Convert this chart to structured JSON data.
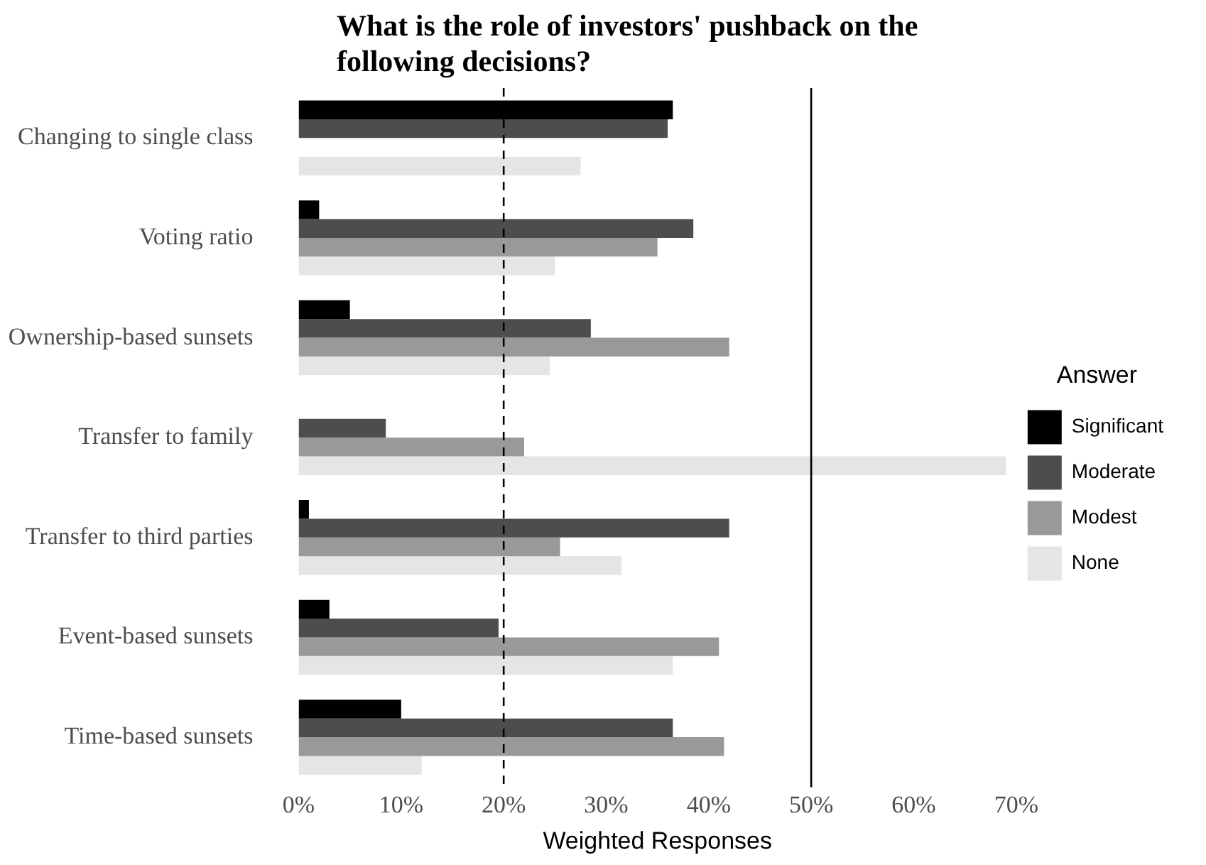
{
  "chart_data": {
    "type": "bar",
    "orientation": "horizontal",
    "title": "What is the role of investors' pushback on the following decisions?",
    "xlabel": "Weighted Responses",
    "legend_title": "Answer",
    "legend": "right",
    "grid": false,
    "categories": [
      "Changing to single class",
      "Voting ratio",
      "Ownership-based sunsets",
      "Transfer to family",
      "Transfer to third parties",
      "Event-based sunsets",
      "Time-based sunsets"
    ],
    "series": [
      {
        "name": "Significant",
        "color": "#000000",
        "values": [
          36.5,
          2,
          5,
          null,
          1,
          3,
          10
        ]
      },
      {
        "name": "Moderate",
        "color": "#4d4d4d",
        "values": [
          36,
          38.5,
          28.5,
          8.5,
          42,
          19.5,
          36.5
        ]
      },
      {
        "name": "Modest",
        "color": "#999999",
        "values": [
          null,
          35,
          42,
          22,
          25.5,
          41,
          41.5
        ]
      },
      {
        "name": "None",
        "color": "#e5e5e5",
        "values": [
          27.5,
          25,
          24.5,
          69,
          31.5,
          36.5,
          12
        ]
      }
    ],
    "xlim": [
      0,
      70
    ],
    "xticks": [
      {
        "value": 0,
        "label": "0%"
      },
      {
        "value": 10,
        "label": "10%"
      },
      {
        "value": 20,
        "label": "20%"
      },
      {
        "value": 30,
        "label": "30%"
      },
      {
        "value": 40,
        "label": "40%"
      },
      {
        "value": 50,
        "label": "50%"
      },
      {
        "value": 60,
        "label": "60%"
      },
      {
        "value": 70,
        "label": "70%"
      }
    ],
    "ref_lines": [
      {
        "axis": "x",
        "value": 20,
        "line_style": "dashed",
        "color": "#000000"
      },
      {
        "axis": "x",
        "value": 50,
        "line_style": "solid",
        "color": "#000000"
      }
    ]
  }
}
